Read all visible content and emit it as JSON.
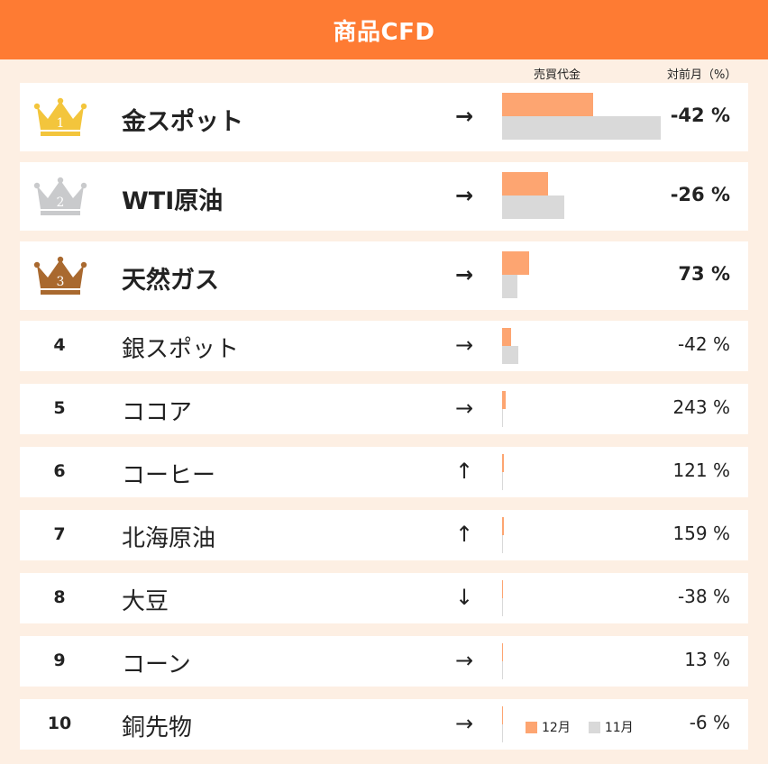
{
  "title": "商品CFD",
  "columns": {
    "volume": "売買代金",
    "mom": "対前月（%）"
  },
  "legend": [
    {
      "label": "12月",
      "color": "#fda571"
    },
    {
      "label": "11月",
      "color": "#d9d9d9"
    }
  ],
  "colors": {
    "header": "#fe7b33",
    "background": "#fdefe3",
    "current_bar": "#fda571",
    "previous_bar": "#d9d9d9",
    "gold": "#f3c53c",
    "silver": "#c9cacc",
    "bronze": "#a9692f"
  },
  "chart_data": {
    "type": "bar",
    "orientation": "horizontal",
    "title": "商品CFD",
    "value_header": "売買代金",
    "change_header": "対前月（%）",
    "series": [
      {
        "name": "12月",
        "values": [
          100,
          50,
          30,
          10,
          4,
          2,
          2,
          1,
          1,
          1
        ]
      },
      {
        "name": "11月",
        "values": [
          174,
          68,
          17,
          18,
          1,
          1,
          1,
          1,
          1,
          1
        ]
      }
    ],
    "categories": [
      "金スポット",
      "WTI原油",
      "天然ガス",
      "銀スポット",
      "ココア",
      "コーヒー",
      "北海原油",
      "大豆",
      "コーン",
      "銅先物"
    ],
    "rows": [
      {
        "rank": "1",
        "name": "金スポット",
        "trend": "→",
        "change": "-42 %",
        "medal": "gold",
        "crown_icon": "gold-crown-icon"
      },
      {
        "rank": "2",
        "name": "WTI原油",
        "trend": "→",
        "change": "-26 %",
        "medal": "silver",
        "crown_icon": "silver-crown-icon"
      },
      {
        "rank": "3",
        "name": "天然ガス",
        "trend": "→",
        "change": "73 %",
        "medal": "bronze",
        "crown_icon": "bronze-crown-icon"
      },
      {
        "rank": "4",
        "name": "銀スポット",
        "trend": "→",
        "change": "-42 %"
      },
      {
        "rank": "5",
        "name": "ココア",
        "trend": "→",
        "change": "243 %"
      },
      {
        "rank": "6",
        "name": "コーヒー",
        "trend": "↑",
        "change": "121 %"
      },
      {
        "rank": "7",
        "name": "北海原油",
        "trend": "↑",
        "change": "159 %"
      },
      {
        "rank": "8",
        "name": "大豆",
        "trend": "↓",
        "change": "-38 %"
      },
      {
        "rank": "9",
        "name": "コーン",
        "trend": "→",
        "change": "13 %"
      },
      {
        "rank": "10",
        "name": "銅先物",
        "trend": "→",
        "change": "-6 %"
      }
    ]
  }
}
